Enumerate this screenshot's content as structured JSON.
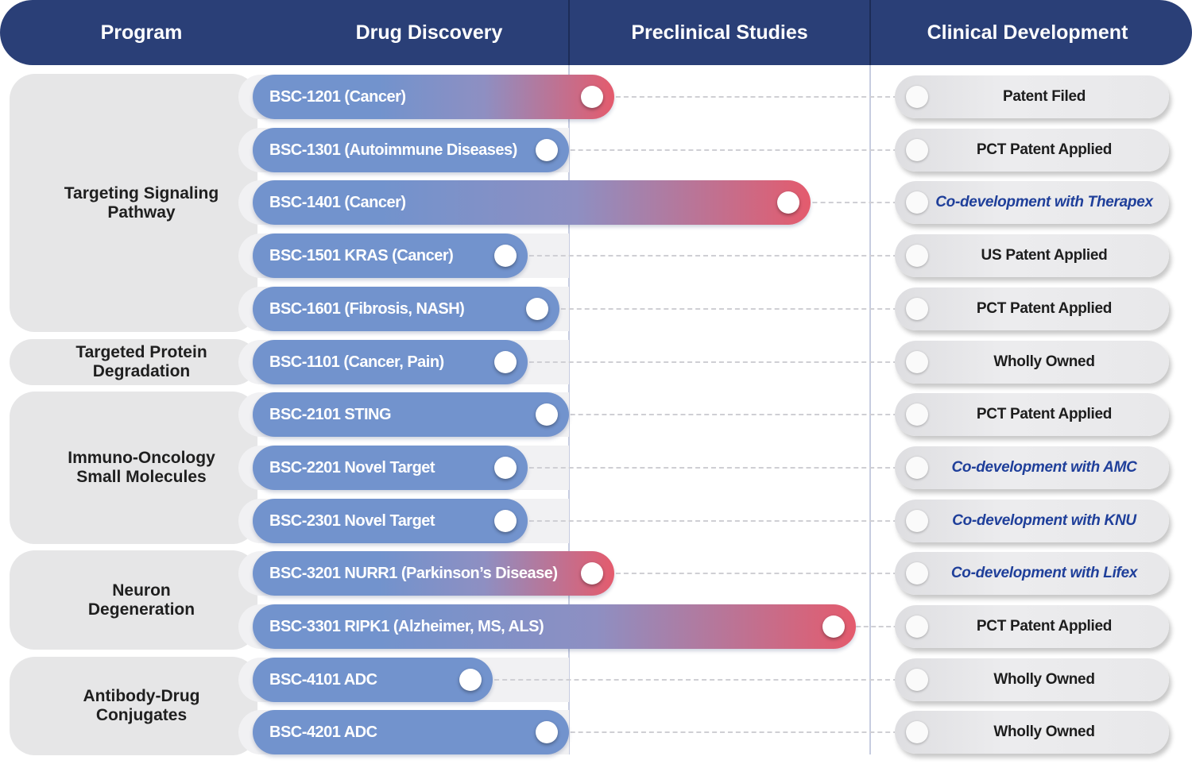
{
  "header": {
    "program": "Program",
    "drug_discovery": "Drug Discovery",
    "preclinical": "Preclinical Studies",
    "clinical": "Clinical Development"
  },
  "colors": {
    "header": "#2a3f77",
    "bar_start": "#7293cd",
    "bar_end": "#e45b6d",
    "codev_text": "#1f3f9a"
  },
  "stages": [
    "Drug Discovery",
    "Preclinical Studies",
    "Clinical Development"
  ],
  "groups": [
    {
      "label": "Targeting Signaling\nPathway",
      "rows": [
        0,
        1,
        2,
        3,
        4
      ]
    },
    {
      "label": "Targeted Protein\nDegradation",
      "rows": [
        5
      ]
    },
    {
      "label": "Immuno-Oncology\nSmall Molecules",
      "rows": [
        6,
        7,
        8
      ]
    },
    {
      "label": "Neuron\nDegeneration",
      "rows": [
        9,
        10
      ]
    },
    {
      "label": "Antibody-Drug\nConjugates",
      "rows": [
        11,
        12
      ]
    }
  ],
  "programs": [
    {
      "name": "BSC-1201 (Cancer)",
      "progress": 1.15,
      "status": "Patent Filed",
      "codev": false
    },
    {
      "name": "BSC-1301 (Autoimmune Diseases)",
      "progress": 1.0,
      "status": "PCT Patent Applied",
      "codev": false
    },
    {
      "name": "BSC-1401 (Cancer)",
      "progress": 1.8,
      "status": "Co-development with Therapex",
      "codev": true
    },
    {
      "name": "BSC-1501 KRAS (Cancer)",
      "progress": 0.87,
      "status": "US Patent Applied",
      "codev": false
    },
    {
      "name": "BSC-1601 (Fibrosis, NASH)",
      "progress": 0.97,
      "status": "PCT Patent Applied",
      "codev": false
    },
    {
      "name": "BSC-1101 (Cancer, Pain)",
      "progress": 0.87,
      "status": "Wholly Owned",
      "codev": false
    },
    {
      "name": "BSC-2101 STING",
      "progress": 1.0,
      "status": "PCT Patent Applied",
      "codev": false
    },
    {
      "name": "BSC-2201 Novel Target",
      "progress": 0.87,
      "status": "Co-development with AMC",
      "codev": true
    },
    {
      "name": "BSC-2301 Novel Target",
      "progress": 0.87,
      "status": "Co-development with KNU",
      "codev": true
    },
    {
      "name": "BSC-3201 NURR1 (Parkinson’s Disease)",
      "progress": 1.15,
      "status": "Co-development with Lifex",
      "codev": true
    },
    {
      "name": "BSC-3301 RIPK1 (Alzheimer, MS, ALS)",
      "progress": 1.95,
      "status": "PCT Patent Applied",
      "codev": false
    },
    {
      "name": "BSC-4101 ADC",
      "progress": 0.76,
      "status": "Wholly Owned",
      "codev": false
    },
    {
      "name": "BSC-4201 ADC",
      "progress": 1.0,
      "status": "Wholly Owned",
      "codev": false
    }
  ]
}
